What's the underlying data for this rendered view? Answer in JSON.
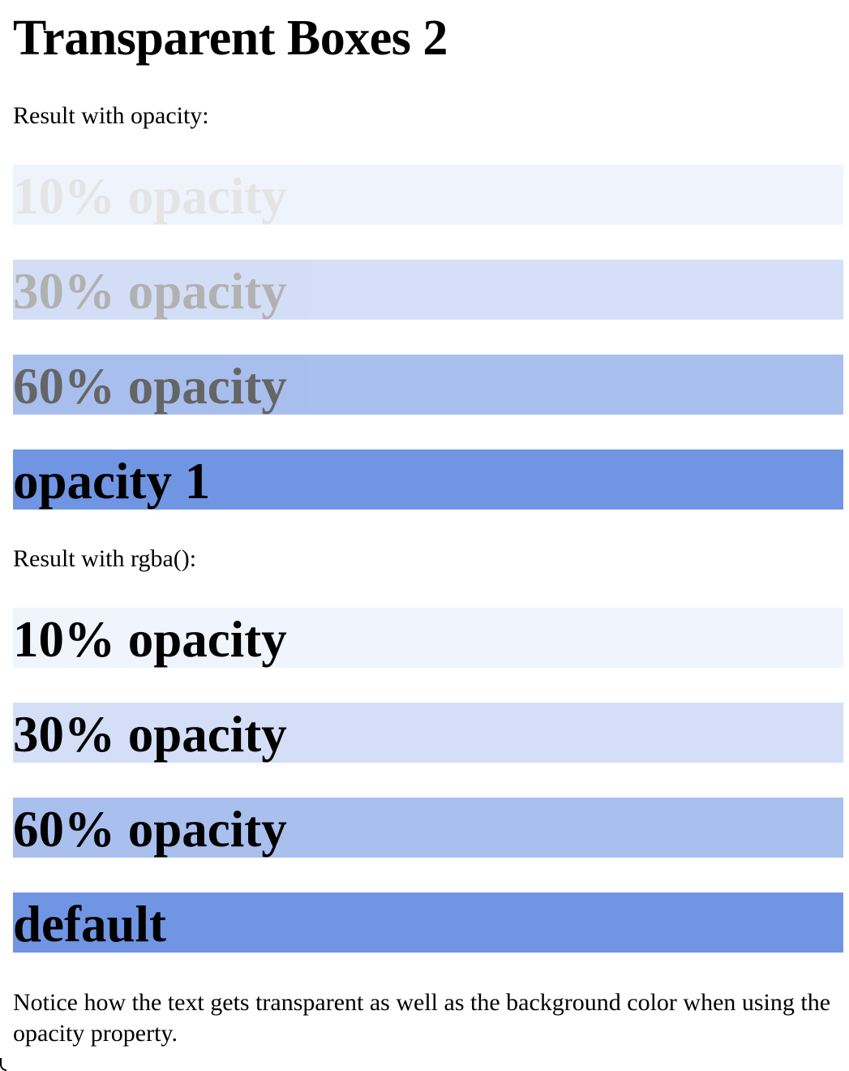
{
  "title": "Transparent Boxes 2",
  "opacity_section": {
    "label": "Result with opacity:",
    "boxes": [
      {
        "text": "10% opacity",
        "opacity": 0.1
      },
      {
        "text": "30% opacity",
        "opacity": 0.3
      },
      {
        "text": "60% opacity",
        "opacity": 0.6
      },
      {
        "text": "opacity 1",
        "opacity": 1
      }
    ]
  },
  "rgba_section": {
    "label": "Result with rgba():",
    "boxes": [
      {
        "text": "10% opacity",
        "alpha": 0.1
      },
      {
        "text": "30% opacity",
        "alpha": 0.3
      },
      {
        "text": "60% opacity",
        "alpha": 0.6
      },
      {
        "text": "default",
        "alpha": 1
      }
    ]
  },
  "note": "Notice how the text gets transparent as well as the background color when using the opacity property.",
  "colors": {
    "box_base": "#7095e3",
    "text": "#000000",
    "page_background": "#ffffff"
  }
}
